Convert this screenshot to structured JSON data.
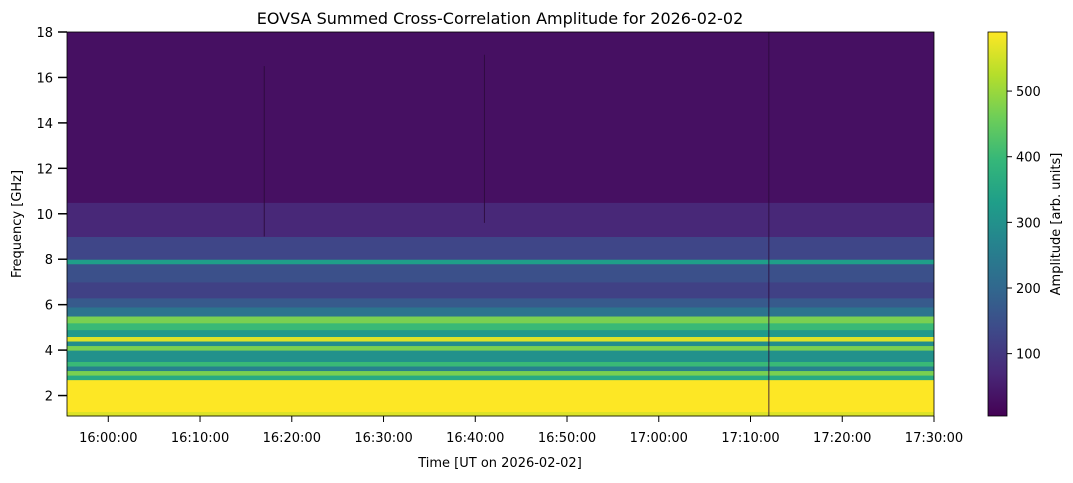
{
  "chart_data": {
    "type": "heatmap",
    "title": "EOVSA Summed Cross-Correlation Amplitude for 2026-02-02",
    "xlabel": "Time [UT on 2026-02-02]",
    "ylabel": "Frequency [GHz]",
    "colorbar_label": "Amplitude [arb. units]",
    "colormap": "viridis",
    "colormap_stops": [
      "#440154",
      "#482878",
      "#3e4989",
      "#31688e",
      "#26828e",
      "#1f9e89",
      "#35b779",
      "#6ece58",
      "#b5de2b",
      "#fde725"
    ],
    "x_range": [
      "15:55:30",
      "17:30:00"
    ],
    "ylim": [
      1.1,
      18
    ],
    "clim": [
      5,
      590
    ],
    "x_ticks": [
      "16:00:00",
      "16:10:00",
      "16:20:00",
      "16:30:00",
      "16:40:00",
      "16:50:00",
      "17:00:00",
      "17:10:00",
      "17:20:00",
      "17:30:00"
    ],
    "y_ticks": [
      2,
      4,
      6,
      8,
      10,
      12,
      14,
      16,
      18
    ],
    "colorbar_ticks": [
      100,
      200,
      300,
      400,
      500
    ],
    "frequency_bands": [
      {
        "f_low": 1.1,
        "f_high": 1.3,
        "amplitude": 560
      },
      {
        "f_low": 1.3,
        "f_high": 2.7,
        "amplitude": 590
      },
      {
        "f_low": 2.7,
        "f_high": 2.9,
        "amplitude": 360
      },
      {
        "f_low": 2.9,
        "f_high": 3.1,
        "amplitude": 470
      },
      {
        "f_low": 3.1,
        "f_high": 3.3,
        "amplitude": 260
      },
      {
        "f_low": 3.3,
        "f_high": 3.5,
        "amplitude": 400
      },
      {
        "f_low": 3.5,
        "f_high": 4.0,
        "amplitude": 300
      },
      {
        "f_low": 4.0,
        "f_high": 4.2,
        "amplitude": 470
      },
      {
        "f_low": 4.2,
        "f_high": 4.4,
        "amplitude": 290
      },
      {
        "f_low": 4.4,
        "f_high": 4.6,
        "amplitude": 560
      },
      {
        "f_low": 4.6,
        "f_high": 4.9,
        "amplitude": 320
      },
      {
        "f_low": 4.9,
        "f_high": 5.2,
        "amplitude": 400
      },
      {
        "f_low": 5.2,
        "f_high": 5.5,
        "amplitude": 470
      },
      {
        "f_low": 5.5,
        "f_high": 5.9,
        "amplitude": 230
      },
      {
        "f_low": 5.9,
        "f_high": 6.3,
        "amplitude": 170
      },
      {
        "f_low": 6.3,
        "f_high": 7.0,
        "amplitude": 120
      },
      {
        "f_low": 7.0,
        "f_high": 7.8,
        "amplitude": 150
      },
      {
        "f_low": 7.8,
        "f_high": 8.0,
        "amplitude": 330
      },
      {
        "f_low": 8.0,
        "f_high": 9.0,
        "amplitude": 130
      },
      {
        "f_low": 9.0,
        "f_high": 10.5,
        "amplitude": 70
      },
      {
        "f_low": 10.5,
        "f_high": 18.0,
        "amplitude": 30
      }
    ],
    "vertical_artifacts": [
      {
        "time": "16:17:00",
        "f_low": 9.0,
        "f_high": 16.5
      },
      {
        "time": "16:41:00",
        "f_low": 9.6,
        "f_high": 17.0
      },
      {
        "time": "17:12:00",
        "f_low": 1.1,
        "f_high": 18.0
      }
    ]
  }
}
